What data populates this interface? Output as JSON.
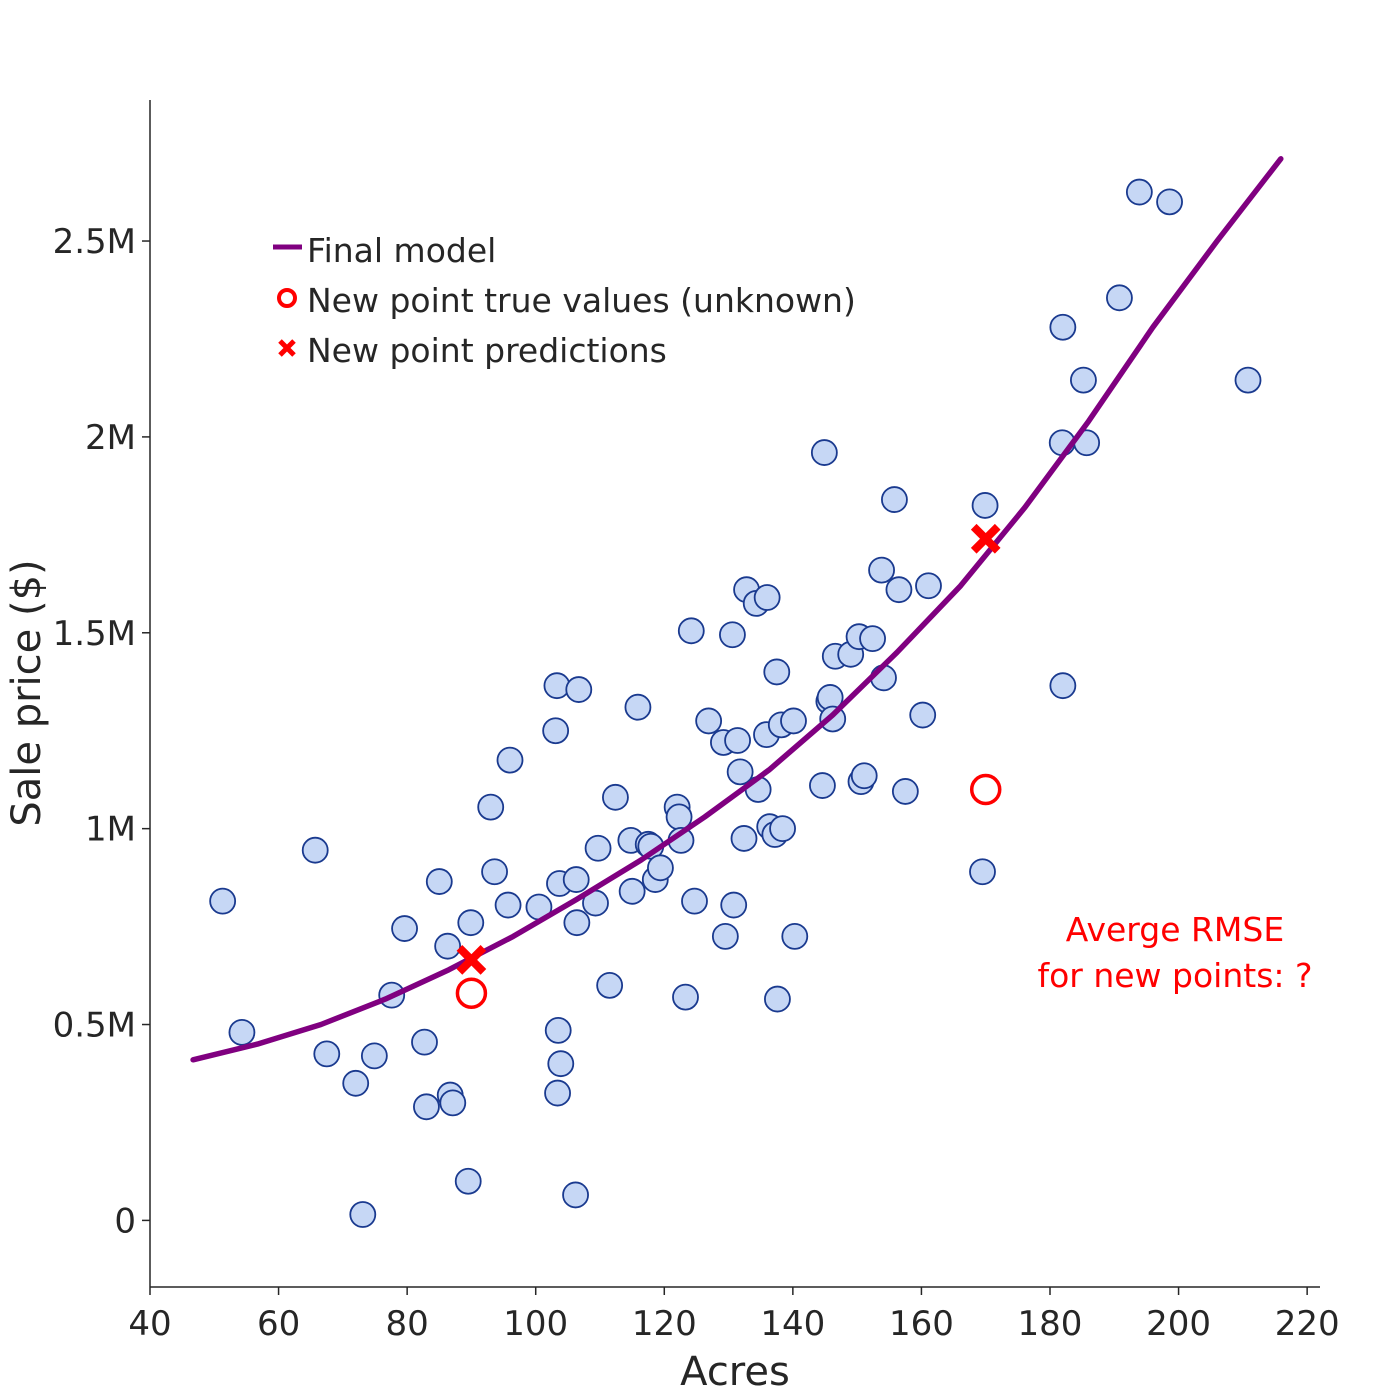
{
  "chart_data": {
    "type": "scatter",
    "xlabel": "Acres",
    "ylabel": "Sale price ($)",
    "xlim": [
      40,
      222
    ],
    "ylim": [
      -170000,
      2860000
    ],
    "x_ticks": [
      {
        "value": 40,
        "label": "40"
      },
      {
        "value": 60,
        "label": "60"
      },
      {
        "value": 80,
        "label": "80"
      },
      {
        "value": 100,
        "label": "100"
      },
      {
        "value": 120,
        "label": "120"
      },
      {
        "value": 140,
        "label": "140"
      },
      {
        "value": 160,
        "label": "160"
      },
      {
        "value": 180,
        "label": "180"
      },
      {
        "value": 200,
        "label": "200"
      },
      {
        "value": 220,
        "label": "220"
      }
    ],
    "y_ticks": [
      {
        "value": 0,
        "label": "0"
      },
      {
        "value": 500000,
        "label": "0.5M"
      },
      {
        "value": 1000000,
        "label": "1M"
      },
      {
        "value": 1500000,
        "label": "1.5M"
      },
      {
        "value": 2000000,
        "label": "2M"
      },
      {
        "value": 2500000,
        "label": "2.5M"
      }
    ],
    "grid": false,
    "legend_position": "top-left",
    "colors": {
      "points_fill": "#c6d7f5",
      "points_stroke": "#1a3a8f",
      "model": "#800080",
      "new_points": "#ff0000"
    },
    "series": [
      {
        "name": "Final model",
        "kind": "line",
        "x": [
          46.7,
          56.7,
          66.6,
          76.6,
          86.5,
          96.5,
          106.4,
          116.4,
          126.3,
          136.3,
          146.2,
          156.2,
          166.1,
          176.1,
          186.0,
          196.0,
          206.0,
          215.9
        ],
        "y": [
          410000,
          450000,
          500000,
          565000,
          640000,
          725000,
          820000,
          920000,
          1030000,
          1150000,
          1290000,
          1450000,
          1620000,
          1820000,
          2040000,
          2280000,
          2500000,
          2710000
        ]
      },
      {
        "name": "New point true values (unknown)",
        "kind": "scatter-open-circle",
        "x": [
          90,
          170
        ],
        "y": [
          580000,
          1100000
        ]
      },
      {
        "name": "New point predictions",
        "kind": "scatter-x",
        "x": [
          90,
          170
        ],
        "y": [
          665000,
          1740000
        ]
      },
      {
        "name": "",
        "kind": "scatter",
        "x": [
          51.3,
          54.3,
          65.7,
          67.5,
          72.0,
          73.1,
          74.9,
          77.6,
          79.6,
          82.7,
          83.0,
          85.0,
          86.3,
          86.7,
          87.1,
          89.5,
          89.9,
          93.0,
          93.6,
          95.7,
          96.0,
          100.5,
          103.1,
          103.3,
          103.4,
          103.5,
          103.7,
          103.9,
          106.2,
          106.3,
          106.4,
          106.7,
          109.3,
          109.7,
          111.5,
          112.4,
          114.8,
          115.0,
          115.9,
          117.5,
          117.9,
          118.6,
          119.4,
          122.0,
          122.3,
          122.6,
          123.3,
          124.2,
          124.7,
          126.9,
          129.2,
          129.5,
          130.6,
          130.8,
          131.4,
          131.8,
          132.4,
          132.8,
          134.3,
          134.6,
          135.9,
          136.0,
          136.4,
          137.2,
          137.5,
          137.6,
          138.2,
          138.4,
          140.1,
          140.3,
          144.6,
          144.9,
          145.6,
          145.8,
          146.2,
          146.6,
          149.0,
          150.3,
          150.6,
          151.1,
          152.4,
          153.8,
          154.1,
          155.8,
          156.5,
          157.5,
          160.2,
          161.1,
          169.5,
          169.9,
          181.9,
          182.0,
          182.0,
          185.2,
          185.7,
          190.8,
          193.9,
          198.6,
          210.8
        ],
        "y": [
          815000,
          480000,
          945000,
          425000,
          350000,
          15000,
          420000,
          575000,
          745000,
          455000,
          290000,
          865000,
          700000,
          320000,
          300000,
          100000,
          760000,
          1055000,
          890000,
          805000,
          1175000,
          800000,
          1250000,
          1365000,
          325000,
          485000,
          860000,
          400000,
          65000,
          870000,
          760000,
          1355000,
          810000,
          950000,
          600000,
          1080000,
          970000,
          840000,
          1310000,
          960000,
          955000,
          870000,
          900000,
          1055000,
          1030000,
          970000,
          570000,
          1505000,
          815000,
          1275000,
          1220000,
          725000,
          1495000,
          805000,
          1225000,
          1145000,
          975000,
          1610000,
          1575000,
          1100000,
          1240000,
          1590000,
          1005000,
          985000,
          1400000,
          565000,
          1265000,
          1000000,
          1275000,
          725000,
          1110000,
          1960000,
          1325000,
          1335000,
          1280000,
          1440000,
          1445000,
          1490000,
          1120000,
          1135000,
          1485000,
          1660000,
          1385000,
          1840000,
          1610000,
          1095000,
          1290000,
          1620000,
          890000,
          1825000,
          1985000,
          1365000,
          2280000,
          2145000,
          1985000,
          2355000,
          2625000,
          2600000,
          2145000
        ]
      }
    ],
    "annotation": {
      "lines": [
        "Averge RMSE",
        "for new points: ?"
      ],
      "position": "lower-right"
    }
  }
}
